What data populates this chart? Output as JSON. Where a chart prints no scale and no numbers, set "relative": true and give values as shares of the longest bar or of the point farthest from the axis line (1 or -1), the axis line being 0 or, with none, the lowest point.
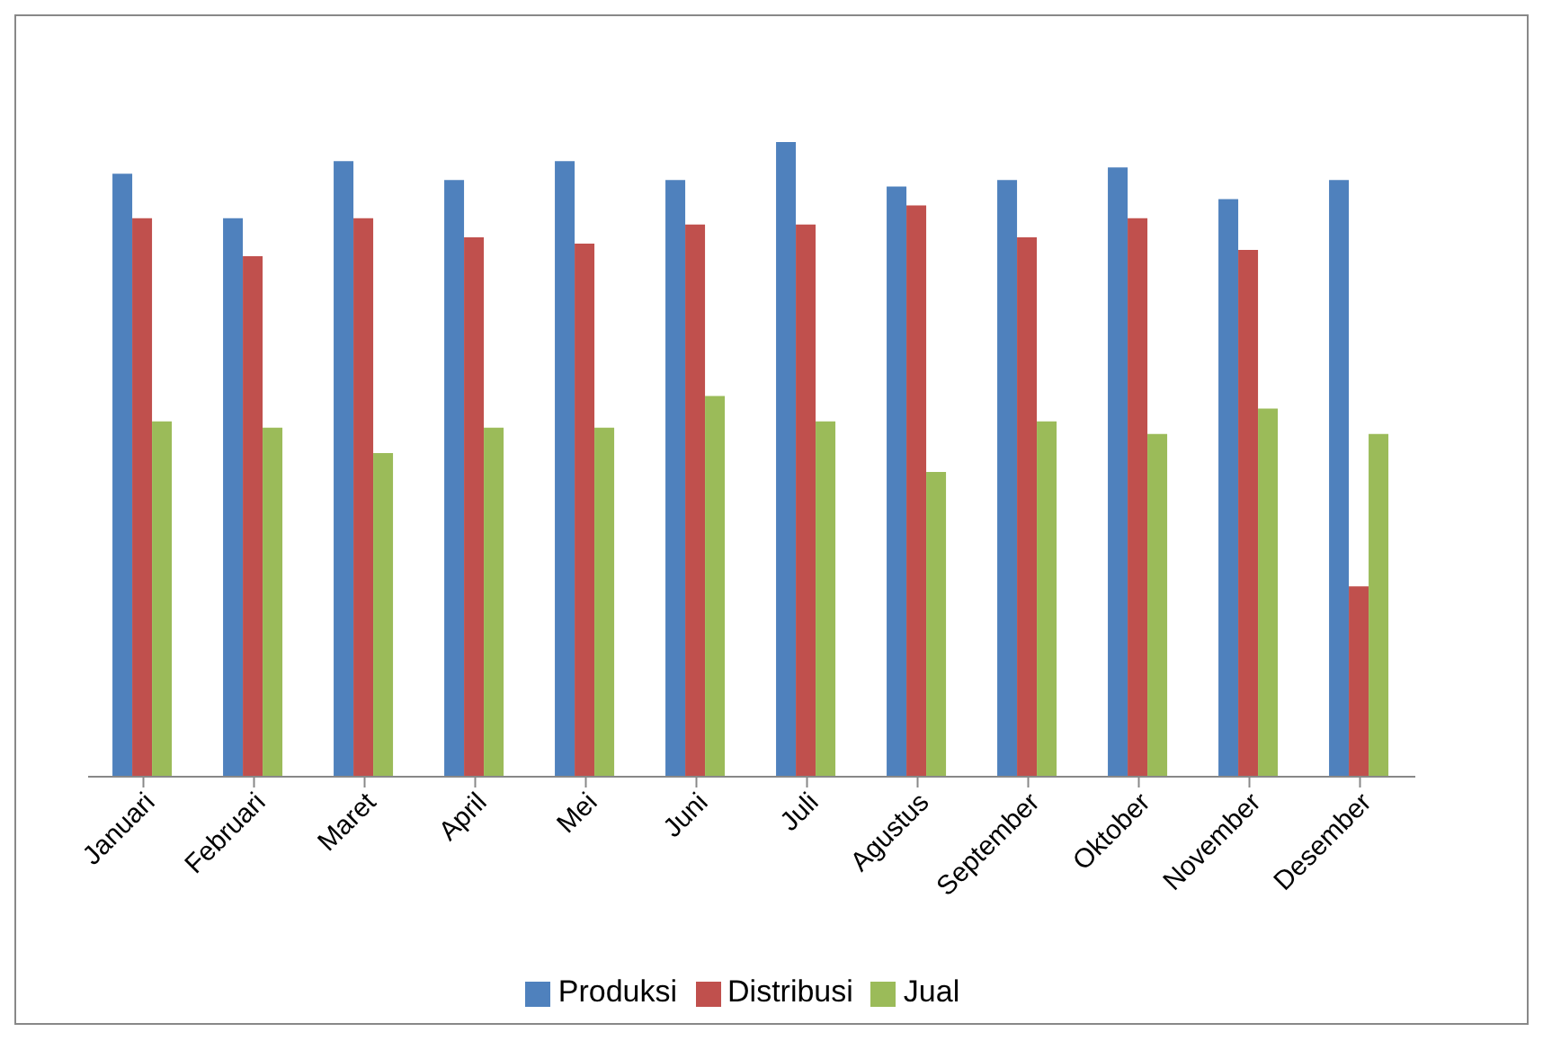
{
  "chart_data": {
    "type": "bar",
    "relative": true,
    "categories": [
      "Januari",
      "Februari",
      "Maret",
      "April",
      "Mei",
      "Juni",
      "Juli",
      "Agustus",
      "September",
      "Oktober",
      "November",
      "Desember"
    ],
    "series": [
      {
        "name": "Produksi",
        "color": "#4f81bd",
        "values": [
          0.95,
          0.88,
          0.97,
          0.94,
          0.97,
          0.94,
          1,
          0.93,
          0.94,
          0.96,
          0.91,
          0.94
        ]
      },
      {
        "name": "Distribusi",
        "color": "#c0504d",
        "values": [
          0.88,
          0.82,
          0.88,
          0.85,
          0.84,
          0.87,
          0.87,
          0.9,
          0.85,
          0.88,
          0.83,
          0.3
        ]
      },
      {
        "name": "Jual",
        "color": "#9bbb59",
        "values": [
          0.56,
          0.55,
          0.51,
          0.55,
          0.55,
          0.6,
          0.56,
          0.48,
          0.56,
          0.54,
          0.58,
          0.54
        ]
      }
    ],
    "legend": "bottom",
    "grid": false
  }
}
